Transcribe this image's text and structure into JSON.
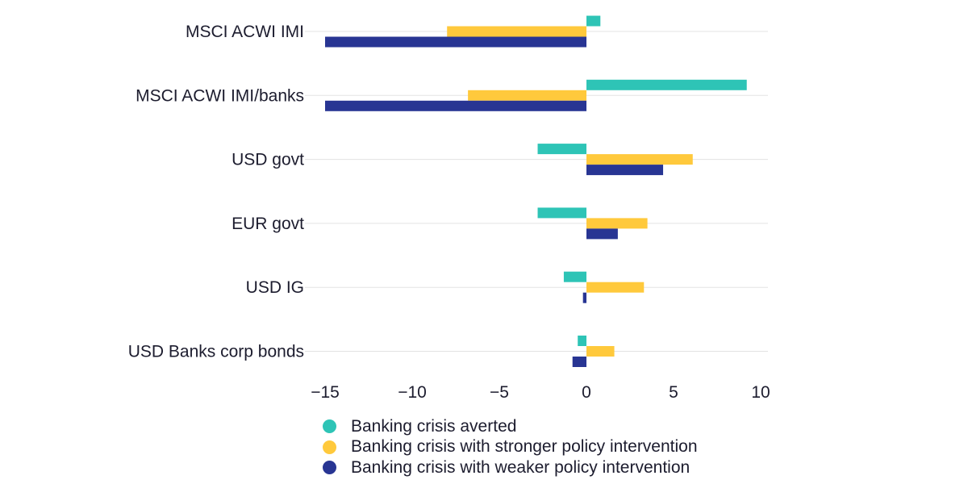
{
  "chart_data": {
    "type": "bar",
    "orientation": "horizontal",
    "categories": [
      "MSCI ACWI IMI",
      "MSCI ACWI IMI/banks",
      "USD govt",
      "EUR govt",
      "USD IG",
      "USD Banks corp bonds"
    ],
    "series": [
      {
        "name": "Banking crisis averted",
        "color": "#2ec4b6",
        "values": [
          0.8,
          9.2,
          -2.8,
          -2.8,
          -1.3,
          -0.5
        ]
      },
      {
        "name": "Banking crisis with stronger policy intervention",
        "color": "#ffc93c",
        "values": [
          -8.0,
          -6.8,
          6.1,
          3.5,
          3.3,
          1.6
        ]
      },
      {
        "name": "Banking crisis with weaker policy intervention",
        "color": "#283593",
        "values": [
          -15.0,
          -15.0,
          4.4,
          1.8,
          -0.2,
          -0.8
        ]
      }
    ],
    "xlim": [
      -15.5,
      10
    ],
    "xticks": [
      -15,
      -10,
      -5,
      0,
      5,
      10
    ],
    "xtick_labels": [
      "−15",
      "−10",
      "−5",
      "0",
      "5",
      "10"
    ],
    "title": "",
    "xlabel": "",
    "ylabel": "",
    "legend_position": "bottom"
  }
}
